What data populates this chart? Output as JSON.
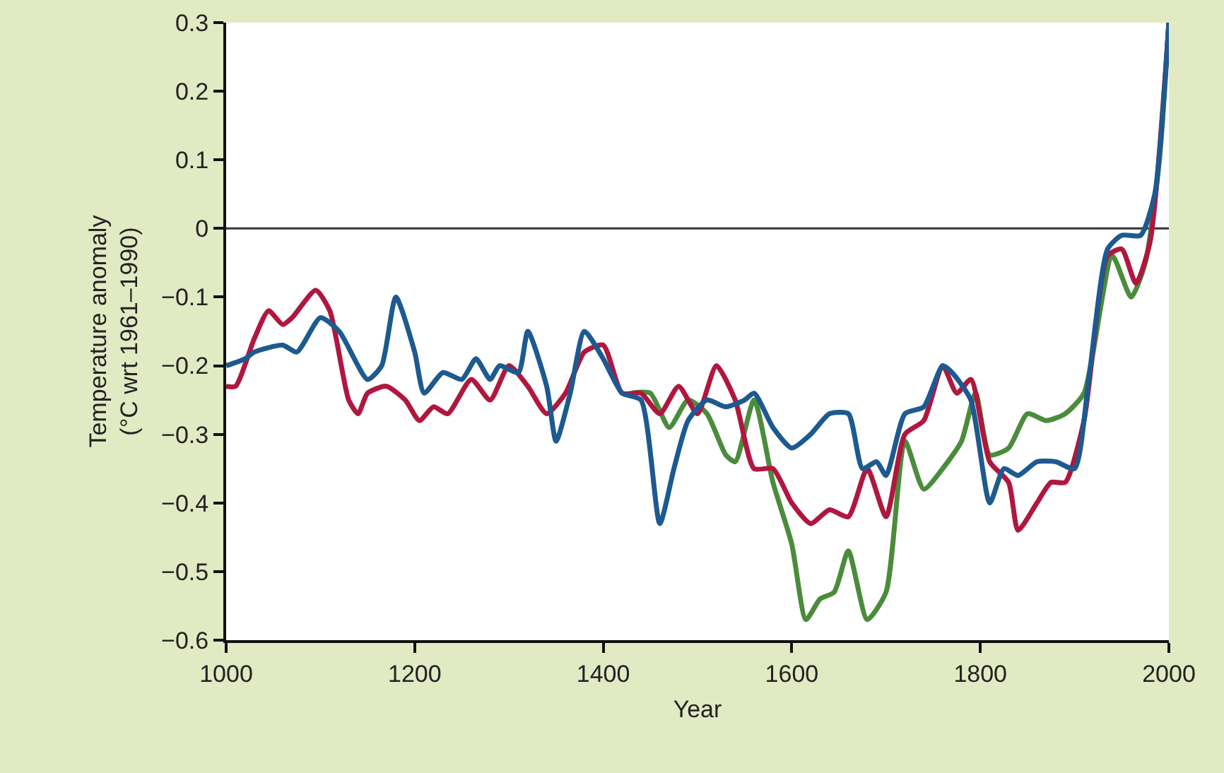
{
  "chart_data": {
    "type": "line",
    "xlabel": "Year",
    "ylabel": "Temperature anomaly\n(°C wrt 1961–1990)",
    "xlim": [
      1000,
      2000
    ],
    "xticks": [
      1000,
      1200,
      1400,
      1600,
      1800,
      2000
    ],
    "ylim": [
      -0.6,
      0.3
    ],
    "yticks": [
      {
        "value": -0.6,
        "label": "−0.6"
      },
      {
        "value": -0.5,
        "label": "−0.5"
      },
      {
        "value": -0.4,
        "label": "−0.4"
      },
      {
        "value": -0.3,
        "label": "−0.3"
      },
      {
        "value": -0.2,
        "label": "−0.2"
      },
      {
        "value": -0.1,
        "label": "−0.1"
      },
      0,
      0.1,
      0.2,
      0.3
    ],
    "grid": false,
    "line_style": "solid",
    "marker": "none",
    "ref_lines": [
      {
        "axis": "y",
        "value": 0,
        "color": "#333333"
      }
    ],
    "series": [
      {
        "color": "#4a8c3c",
        "x": [
          1430,
          1450,
          1470,
          1490,
          1510,
          1530,
          1540,
          1560,
          1580,
          1600,
          1615,
          1630,
          1645,
          1660,
          1680,
          1700,
          1720,
          1740,
          1760,
          1780,
          1795,
          1810,
          1830,
          1850,
          1870,
          1890,
          1910,
          1940,
          1960,
          1975,
          1990,
          2000
        ],
        "values": [
          -0.24,
          -0.24,
          -0.29,
          -0.25,
          -0.27,
          -0.33,
          -0.34,
          -0.25,
          -0.37,
          -0.46,
          -0.57,
          -0.54,
          -0.53,
          -0.47,
          -0.57,
          -0.53,
          -0.31,
          -0.38,
          -0.35,
          -0.31,
          -0.24,
          -0.33,
          -0.32,
          -0.27,
          -0.28,
          -0.27,
          -0.24,
          -0.04,
          -0.1,
          -0.05,
          0.1,
          0.3
        ]
      },
      {
        "color": "#b0173f",
        "x": [
          1000,
          1010,
          1030,
          1045,
          1060,
          1070,
          1095,
          1110,
          1130,
          1140,
          1150,
          1170,
          1190,
          1205,
          1220,
          1235,
          1260,
          1280,
          1300,
          1320,
          1340,
          1360,
          1380,
          1400,
          1420,
          1440,
          1460,
          1480,
          1500,
          1520,
          1540,
          1560,
          1580,
          1600,
          1620,
          1640,
          1660,
          1680,
          1700,
          1720,
          1740,
          1760,
          1775,
          1790,
          1810,
          1830,
          1840,
          1860,
          1875,
          1890,
          1910,
          1935,
          1950,
          1965,
          1980,
          2000
        ],
        "values": [
          -0.23,
          -0.23,
          -0.16,
          -0.12,
          -0.14,
          -0.13,
          -0.09,
          -0.12,
          -0.25,
          -0.27,
          -0.24,
          -0.23,
          -0.25,
          -0.28,
          -0.26,
          -0.27,
          -0.22,
          -0.25,
          -0.2,
          -0.23,
          -0.27,
          -0.24,
          -0.18,
          -0.17,
          -0.24,
          -0.24,
          -0.27,
          -0.23,
          -0.27,
          -0.2,
          -0.25,
          -0.35,
          -0.35,
          -0.4,
          -0.43,
          -0.41,
          -0.42,
          -0.35,
          -0.42,
          -0.3,
          -0.28,
          -0.2,
          -0.24,
          -0.22,
          -0.34,
          -0.37,
          -0.44,
          -0.4,
          -0.37,
          -0.37,
          -0.28,
          -0.04,
          -0.03,
          -0.08,
          -0.02,
          0.3
        ]
      },
      {
        "color": "#1c5a90",
        "x": [
          1000,
          1020,
          1030,
          1060,
          1075,
          1100,
          1120,
          1150,
          1165,
          1180,
          1200,
          1210,
          1230,
          1250,
          1265,
          1280,
          1290,
          1310,
          1320,
          1340,
          1350,
          1365,
          1380,
          1400,
          1420,
          1440,
          1460,
          1475,
          1490,
          1510,
          1530,
          1550,
          1560,
          1580,
          1600,
          1620,
          1640,
          1660,
          1675,
          1690,
          1700,
          1720,
          1740,
          1760,
          1770,
          1790,
          1810,
          1825,
          1840,
          1860,
          1880,
          1900,
          1915,
          1935,
          1950,
          1970,
          1985,
          2000
        ],
        "values": [
          -0.2,
          -0.19,
          -0.18,
          -0.17,
          -0.18,
          -0.13,
          -0.15,
          -0.22,
          -0.2,
          -0.1,
          -0.18,
          -0.24,
          -0.21,
          -0.22,
          -0.19,
          -0.22,
          -0.2,
          -0.21,
          -0.15,
          -0.23,
          -0.31,
          -0.24,
          -0.15,
          -0.19,
          -0.24,
          -0.25,
          -0.43,
          -0.35,
          -0.28,
          -0.25,
          -0.26,
          -0.25,
          -0.24,
          -0.29,
          -0.32,
          -0.3,
          -0.27,
          -0.27,
          -0.35,
          -0.34,
          -0.36,
          -0.27,
          -0.26,
          -0.2,
          -0.21,
          -0.25,
          -0.4,
          -0.35,
          -0.36,
          -0.34,
          -0.34,
          -0.35,
          -0.22,
          -0.03,
          -0.01,
          -0.01,
          0.05,
          0.3
        ]
      }
    ]
  }
}
